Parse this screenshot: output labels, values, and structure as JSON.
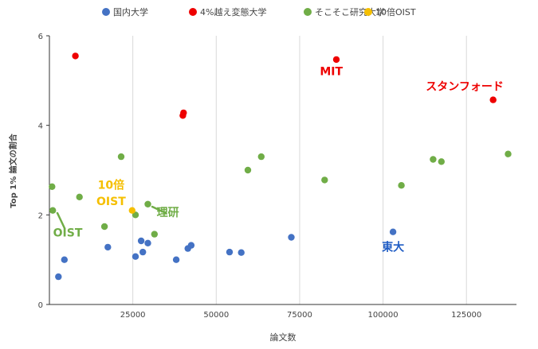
{
  "chart_data": {
    "type": "scatter",
    "xlabel": "論文数",
    "ylabel": "Top 1% 論文の割合",
    "xlim": [
      0,
      140000
    ],
    "ylim": [
      0,
      6
    ],
    "x_ticks": [
      25000,
      50000,
      75000,
      100000,
      125000
    ],
    "x_tick_labels": [
      "25000",
      "50000",
      "75000",
      "100000",
      "125000"
    ],
    "y_ticks": [
      0,
      2,
      4,
      6
    ],
    "y_tick_labels": [
      "0",
      "2",
      "4",
      "6"
    ],
    "grid": "vertical",
    "legend_position": "top",
    "series": [
      {
        "name": "国内大学",
        "color": "#4472c4",
        "points": [
          {
            "x": 2700,
            "y": 0.62
          },
          {
            "x": 4500,
            "y": 1.0
          },
          {
            "x": 17500,
            "y": 1.28
          },
          {
            "x": 25800,
            "y": 1.07
          },
          {
            "x": 27500,
            "y": 1.42
          },
          {
            "x": 28000,
            "y": 1.17
          },
          {
            "x": 29500,
            "y": 1.37
          },
          {
            "x": 38000,
            "y": 1.0
          },
          {
            "x": 41500,
            "y": 1.25
          },
          {
            "x": 42500,
            "y": 1.32
          },
          {
            "x": 54000,
            "y": 1.17
          },
          {
            "x": 57500,
            "y": 1.16
          },
          {
            "x": 72500,
            "y": 1.5
          },
          {
            "x": 103000,
            "y": 1.62
          }
        ]
      },
      {
        "name": "4%越え変態大学",
        "color": "#ee0000",
        "points": [
          {
            "x": 7800,
            "y": 5.55
          },
          {
            "x": 40000,
            "y": 4.22
          },
          {
            "x": 40200,
            "y": 4.28
          },
          {
            "x": 86000,
            "y": 5.47
          },
          {
            "x": 133000,
            "y": 4.57
          }
        ]
      },
      {
        "name": "そこそこ研究大学",
        "color": "#70ad47",
        "points": [
          {
            "x": 800,
            "y": 2.63
          },
          {
            "x": 1000,
            "y": 2.1
          },
          {
            "x": 9000,
            "y": 2.4
          },
          {
            "x": 16500,
            "y": 1.74
          },
          {
            "x": 21500,
            "y": 3.3
          },
          {
            "x": 25800,
            "y": 2.0
          },
          {
            "x": 29500,
            "y": 2.24
          },
          {
            "x": 31500,
            "y": 1.57
          },
          {
            "x": 59500,
            "y": 3.0
          },
          {
            "x": 63500,
            "y": 3.3
          },
          {
            "x": 82500,
            "y": 2.78
          },
          {
            "x": 105500,
            "y": 2.66
          },
          {
            "x": 115000,
            "y": 3.24
          },
          {
            "x": 117500,
            "y": 3.19
          },
          {
            "x": 137500,
            "y": 3.36
          }
        ]
      },
      {
        "name": "10倍OIST",
        "color": "#f5bf00",
        "points": [
          {
            "x": 24800,
            "y": 2.1
          }
        ]
      }
    ],
    "annotations": [
      {
        "text": "MIT",
        "color": "#ee0000",
        "x": 84500,
        "y": 5.12
      },
      {
        "text": "スタンフォード",
        "color": "#ee0000",
        "x": 124500,
        "y": 4.78
      },
      {
        "text": "10倍",
        "color": "#f5bf00",
        "x": 18500,
        "y": 2.58
      },
      {
        "text": "OIST",
        "color": "#f5bf00",
        "x": 18500,
        "y": 2.22
      },
      {
        "text": "理研",
        "color": "#70ad47",
        "x": 35500,
        "y": 1.97
      },
      {
        "text": "OIST",
        "color": "#70ad47",
        "x": 5500,
        "y": 1.52
      },
      {
        "text": "東大",
        "color": "#1f5cc4",
        "x": 103000,
        "y": 1.2
      }
    ]
  }
}
